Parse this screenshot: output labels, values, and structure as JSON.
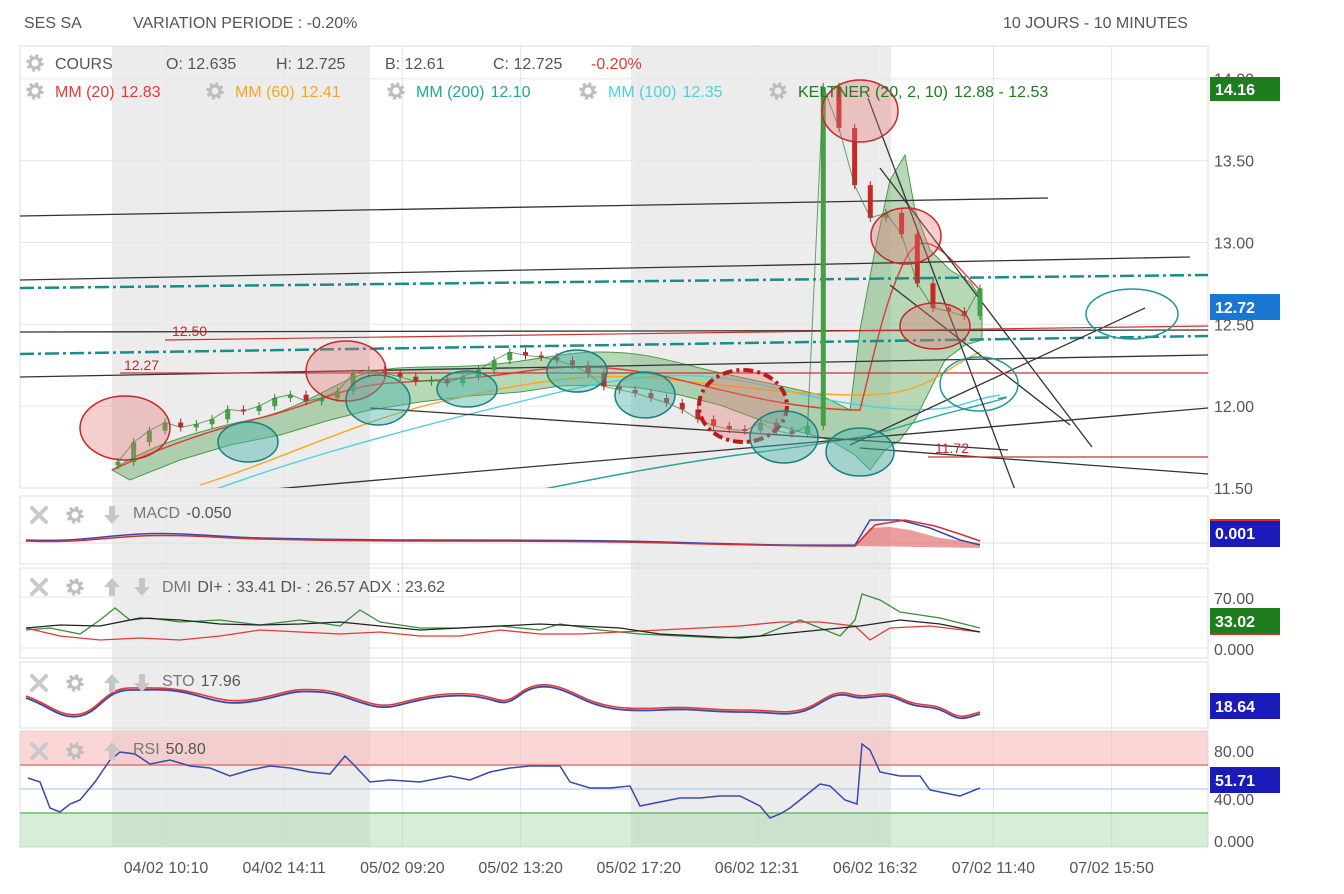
{
  "header": {
    "ticker": "SES SA",
    "variation": "VARIATION PERIODE : -0.20%",
    "timeframe": "10 JOURS - 10 MINUTES"
  },
  "ohlc": {
    "label": "COURS",
    "open": "O: 12.635",
    "high": "H: 12.725",
    "low": "B: 12.61",
    "close": "C: 12.725",
    "change": "-0.20%"
  },
  "indicators": [
    {
      "label": "MM (20)",
      "value": "12.83",
      "color": "#e53935"
    },
    {
      "label": "MM (60)",
      "value": "12.41",
      "color": "#f5a623"
    },
    {
      "label": "MM (200)",
      "value": "12.10",
      "color": "#26a69a"
    },
    {
      "label": "MM (100)",
      "value": "12.35",
      "color": "#4dd0e1"
    },
    {
      "label": "KELTNER (20, 2, 10)",
      "value": "12.88 - 12.53",
      "color": "#1b7d1b"
    }
  ],
  "price_badges": {
    "high": "14.16",
    "last": "12.72"
  },
  "annotations": {
    "level_a": "12.50",
    "level_b": "12.27",
    "level_c": "11.72"
  },
  "panels": {
    "macd": {
      "label": "MACD",
      "value": "-0.050",
      "badge": "0.001"
    },
    "dmi": {
      "label": "DMI",
      "value": "DI+ : 33.41 DI- : 26.57 ADX : 23.62",
      "badge": "33.02",
      "ticks": [
        "70.00",
        "0.000"
      ]
    },
    "sto": {
      "label": "STO",
      "value": "17.96",
      "badge": "18.64"
    },
    "rsi": {
      "label": "RSI",
      "value": "50.80",
      "badge": "51.71",
      "ticks": [
        "80.00",
        "40.00",
        "0.000"
      ]
    }
  },
  "chart_data": {
    "type": "line",
    "y_ticks": [
      "14.00",
      "13.50",
      "13.00",
      "12.50",
      "12.00",
      "11.50"
    ],
    "ylim": [
      11.5,
      14.2
    ],
    "x_ticks": [
      "04/02 10:10",
      "04/02 14:11",
      "05/02 09:20",
      "05/02 13:20",
      "05/02 17:20",
      "06/02 12:31",
      "06/02 16:32",
      "07/02 11:40",
      "07/02 15:50"
    ],
    "series": [
      {
        "values": [
          11.66,
          11.78,
          11.85,
          11.9,
          11.87,
          11.89,
          11.92,
          11.98,
          11.97,
          12.0,
          12.05,
          12.07,
          12.03,
          12.05,
          12.09,
          12.2,
          12.22,
          12.2,
          12.18,
          12.15,
          12.16,
          12.14,
          12.18,
          12.22,
          12.28,
          12.33,
          12.31,
          12.3,
          12.28,
          12.25,
          12.2,
          12.12,
          12.1,
          12.08,
          12.05,
          12.02,
          11.98,
          11.92,
          11.88,
          11.86,
          11.85,
          11.9,
          11.85,
          11.83,
          11.88,
          13.95,
          13.7,
          13.35,
          13.15,
          13.18,
          13.05,
          12.75,
          12.6,
          12.58,
          12.55,
          12.72
        ]
      }
    ]
  }
}
